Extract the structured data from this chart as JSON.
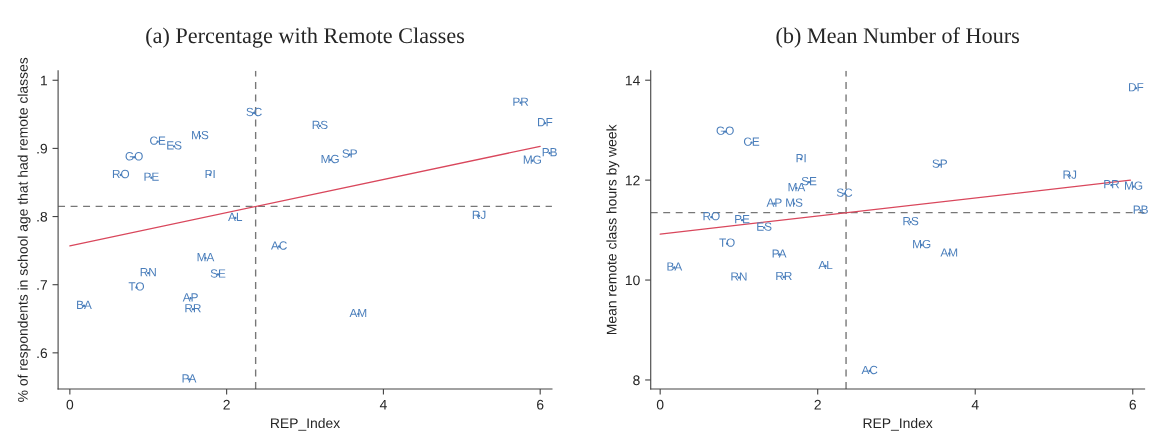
{
  "chart_data": [
    {
      "type": "scatter",
      "title": "(a) Percentage with Remote Classes",
      "xlabel": "REP_Index",
      "ylabel": "% of respondents in school age that had remote classes",
      "xlim": [
        -0.15,
        6.15
      ],
      "ylim": [
        0.547,
        1.014
      ],
      "xticks": [
        0,
        2,
        4,
        6
      ],
      "yticks": [
        {
          "value": 0.6,
          "label": ".6"
        },
        {
          "value": 0.7,
          "label": ".7"
        },
        {
          "value": 0.8,
          "label": ".8"
        },
        {
          "value": 0.9,
          "label": ".9"
        },
        1
      ],
      "grid": false,
      "series": [
        {
          "color": "#4a7ebb",
          "x": [
            2.35,
            5.75,
            6.06,
            3.19,
            1.66,
            1.12,
            1.33,
            0.82,
            3.32,
            3.57,
            6.12,
            5.9,
            0.65,
            1.04,
            1.79,
            2.11,
            5.22,
            2.67,
            1.73,
            1.0,
            1.89,
            0.85,
            0.18,
            1.54,
            1.57,
            3.68,
            1.52
          ],
          "values": [
            0.952,
            0.967,
            0.937,
            0.933,
            0.918,
            0.91,
            0.903,
            0.887,
            0.883,
            0.891,
            0.893,
            0.882,
            0.861,
            0.857,
            0.861,
            0.798,
            0.801,
            0.756,
            0.739,
            0.717,
            0.715,
            0.696,
            0.669,
            0.68,
            0.664,
            0.657,
            0.561
          ],
          "value_labels": [
            "SC",
            "PR",
            "DF",
            "RS",
            "MS",
            "CE",
            "ES",
            "GO",
            "MG",
            "SP",
            "PB",
            "MG",
            "RO",
            "PE",
            "PI",
            "AL",
            "RJ",
            "AC",
            "MA",
            "RN",
            "SE",
            "TO",
            "BA",
            "AP",
            "RR",
            "AM",
            "PA"
          ]
        },
        {
          "type": "line",
          "color": "#d9475c",
          "x": [
            0.0,
            6.0
          ],
          "values": [
            0.757,
            0.903
          ]
        }
      ],
      "ref_lines": [
        {
          "axis": "x",
          "value": 2.37,
          "color": "#777777",
          "line_style": "dashed"
        },
        {
          "axis": "y",
          "value": 0.815,
          "color": "#777777",
          "line_style": "dashed"
        }
      ]
    },
    {
      "type": "scatter",
      "title": "(b) Mean Number of Hours",
      "xlabel": "REP_Index",
      "ylabel": "Mean remote class hours by week",
      "xlim": [
        -0.12,
        6.15
      ],
      "ylim": [
        7.82,
        14.19
      ],
      "xticks": [
        0,
        2,
        4,
        6
      ],
      "yticks": [
        8,
        10,
        12,
        14
      ],
      "grid": false,
      "series": [
        {
          "color": "#4a7ebb",
          "x": [
            6.04,
            0.825,
            1.16,
            1.79,
            3.55,
            5.2,
            5.73,
            6.01,
            1.89,
            1.73,
            2.34,
            1.45,
            1.7,
            6.1,
            0.65,
            1.04,
            1.32,
            3.18,
            0.85,
            3.32,
            3.67,
            1.51,
            0.18,
            2.1,
            1.0,
            1.57,
            2.66
          ],
          "values": [
            13.84,
            12.97,
            12.75,
            12.42,
            12.31,
            12.09,
            11.9,
            11.87,
            11.96,
            11.84,
            11.73,
            11.53,
            11.53,
            11.39,
            11.26,
            11.2,
            11.05,
            11.16,
            10.73,
            10.7,
            10.53,
            10.51,
            10.25,
            10.28,
            10.05,
            10.06,
            8.18
          ],
          "value_labels": [
            "DF",
            "GO",
            "CE",
            "PI",
            "SP",
            "RJ",
            "PR",
            "MG",
            "SE",
            "MA",
            "SC",
            "AP",
            "MS",
            "PB",
            "RO",
            "PE",
            "ES",
            "RS",
            "TO",
            "MG",
            "AM",
            "PA",
            "BA",
            "AL",
            "RN",
            "RR",
            "AC"
          ]
        },
        {
          "type": "line",
          "color": "#d9475c",
          "x": [
            0.0,
            5.97
          ],
          "values": [
            10.92,
            12.0
          ]
        }
      ],
      "ref_lines": [
        {
          "axis": "x",
          "value": 2.36,
          "color": "#777777",
          "line_style": "dashed"
        },
        {
          "axis": "y",
          "value": 11.35,
          "color": "#777777",
          "line_style": "dashed"
        }
      ]
    }
  ]
}
